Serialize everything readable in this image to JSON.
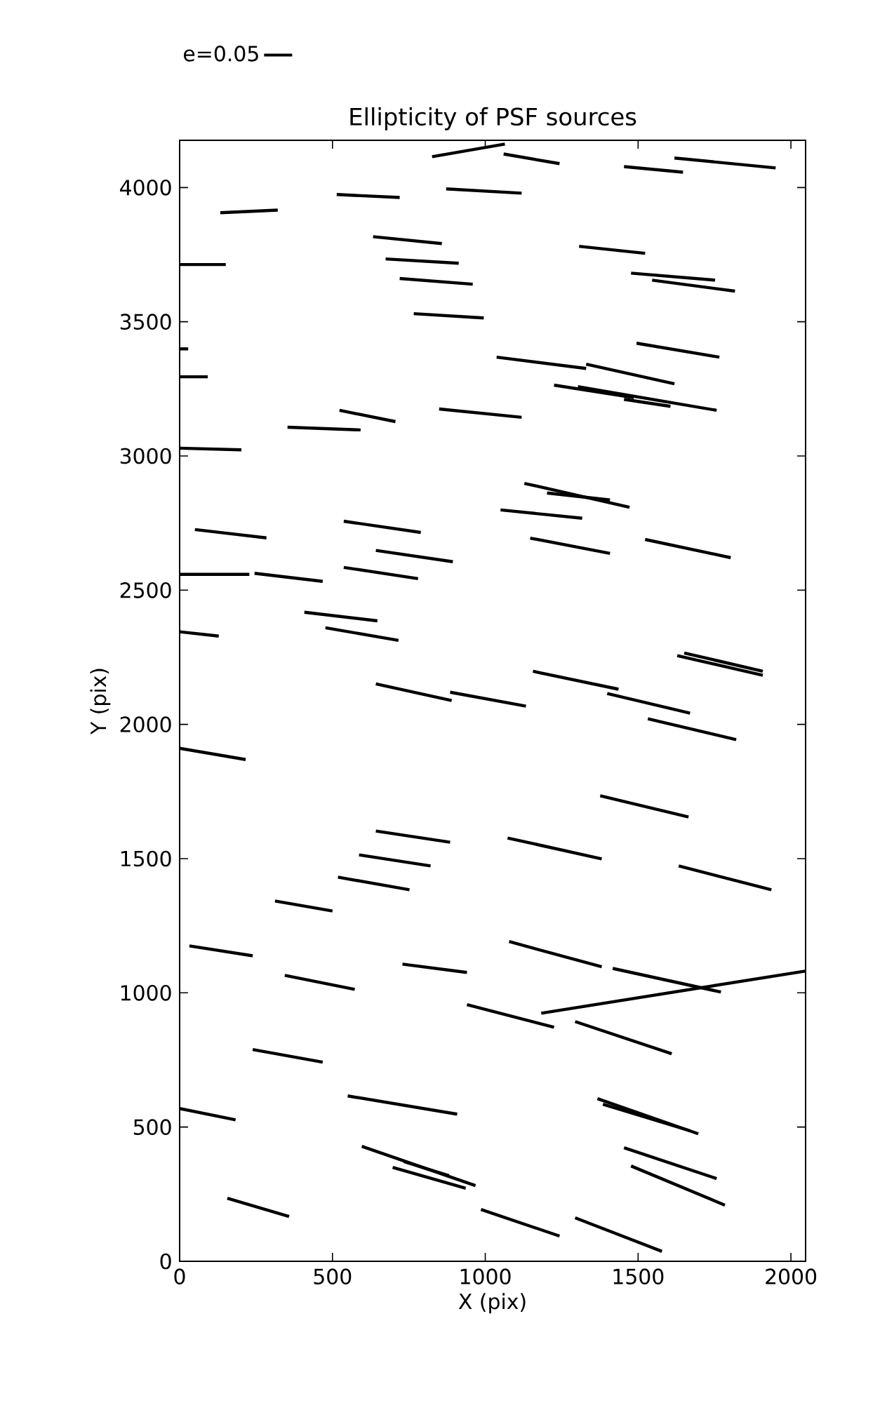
{
  "chart_data": {
    "type": "line",
    "title": "Ellipticity of PSF sources",
    "xlabel": "X (pix)",
    "ylabel": "Y (pix)",
    "xlim": [
      0,
      2048
    ],
    "ylim": [
      0,
      4176
    ],
    "xticks": [
      0,
      500,
      1000,
      1500,
      2000
    ],
    "yticks": [
      0,
      500,
      1000,
      1500,
      2000,
      2500,
      3000,
      3500,
      4000
    ],
    "grid": false,
    "legend": "top left",
    "marker": "none",
    "line_style": "solid",
    "series": [
      {
        "name": "e=0.05",
        "color": "#000000",
        "x": [
          826,
          1064
        ],
        "values": [
          4115,
          4162
        ]
      },
      {
        "color": "#000000",
        "x": [
          1060,
          1243
        ],
        "values": [
          4125,
          4089
        ]
      },
      {
        "color": "#000000",
        "x": [
          1454,
          1647
        ],
        "values": [
          4078,
          4057
        ]
      },
      {
        "color": "#000000",
        "x": [
          1619,
          1950
        ],
        "values": [
          4110,
          4073
        ]
      },
      {
        "color": "#000000",
        "x": [
          133,
          321
        ],
        "values": [
          3906,
          3916
        ]
      },
      {
        "color": "#000000",
        "x": [
          514,
          720
        ],
        "values": [
          3974,
          3963
        ]
      },
      {
        "color": "#000000",
        "x": [
          872,
          1119
        ],
        "values": [
          3995,
          3979
        ]
      },
      {
        "color": "#000000",
        "x": [
          0,
          151
        ],
        "values": [
          3713,
          3713
        ]
      },
      {
        "color": "#000000",
        "x": [
          633,
          858
        ],
        "values": [
          3817,
          3791
        ]
      },
      {
        "color": "#000000",
        "x": [
          674,
          913
        ],
        "values": [
          3734,
          3718
        ]
      },
      {
        "color": "#000000",
        "x": [
          720,
          959
        ],
        "values": [
          3661,
          3640
        ]
      },
      {
        "color": "#000000",
        "x": [
          766,
          995
        ],
        "values": [
          3530,
          3514
        ]
      },
      {
        "color": "#000000",
        "x": [
          1307,
          1523
        ],
        "values": [
          3781,
          3755
        ]
      },
      {
        "color": "#000000",
        "x": [
          1477,
          1752
        ],
        "values": [
          3681,
          3655
        ]
      },
      {
        "color": "#000000",
        "x": [
          1546,
          1817
        ],
        "values": [
          3655,
          3614
        ]
      },
      {
        "color": "#000000",
        "x": [
          0,
          28
        ],
        "values": [
          3399,
          3399
        ]
      },
      {
        "color": "#000000",
        "x": [
          0,
          92
        ],
        "values": [
          3295,
          3295
        ]
      },
      {
        "color": "#000000",
        "x": [
          0,
          202
        ],
        "values": [
          3029,
          3023
        ]
      },
      {
        "color": "#000000",
        "x": [
          353,
          592
        ],
        "values": [
          3107,
          3097
        ]
      },
      {
        "color": "#000000",
        "x": [
          523,
          706
        ],
        "values": [
          3170,
          3128
        ]
      },
      {
        "color": "#000000",
        "x": [
          849,
          1119
        ],
        "values": [
          3175,
          3144
        ]
      },
      {
        "color": "#000000",
        "x": [
          1037,
          1330
        ],
        "values": [
          3368,
          3326
        ]
      },
      {
        "color": "#000000",
        "x": [
          1330,
          1619
        ],
        "values": [
          3342,
          3269
        ]
      },
      {
        "color": "#000000",
        "x": [
          1225,
          1486
        ],
        "values": [
          3264,
          3217
        ]
      },
      {
        "color": "#000000",
        "x": [
          1303,
          1757
        ],
        "values": [
          3258,
          3170
        ]
      },
      {
        "color": "#000000",
        "x": [
          1454,
          1606
        ],
        "values": [
          3211,
          3185
        ]
      },
      {
        "color": "#000000",
        "x": [
          1495,
          1766
        ],
        "values": [
          3420,
          3368
        ]
      },
      {
        "color": "#000000",
        "x": [
          1128,
          1472
        ],
        "values": [
          2898,
          2809
        ]
      },
      {
        "color": "#000000",
        "x": [
          1202,
          1408
        ],
        "values": [
          2862,
          2836
        ]
      },
      {
        "color": "#000000",
        "x": [
          1050,
          1317
        ],
        "values": [
          2799,
          2768
        ]
      },
      {
        "color": "#000000",
        "x": [
          50,
          284
        ],
        "values": [
          2726,
          2695
        ]
      },
      {
        "color": "#000000",
        "x": [
          537,
          789
        ],
        "values": [
          2757,
          2715
        ]
      },
      {
        "color": "#000000",
        "x": [
          642,
          894
        ],
        "values": [
          2648,
          2606
        ]
      },
      {
        "color": "#000000",
        "x": [
          537,
          780
        ],
        "values": [
          2585,
          2543
        ]
      },
      {
        "color": "#000000",
        "x": [
          0,
          228
        ],
        "values": [
          2559,
          2559
        ]
      },
      {
        "color": "#000000",
        "x": [
          245,
          468
        ],
        "values": [
          2563,
          2533
        ]
      },
      {
        "color": "#000000",
        "x": [
          408,
          647
        ],
        "values": [
          2418,
          2386
        ]
      },
      {
        "color": "#000000",
        "x": [
          477,
          716
        ],
        "values": [
          2360,
          2313
        ]
      },
      {
        "color": "#000000",
        "x": [
          0,
          128
        ],
        "values": [
          2345,
          2329
        ]
      },
      {
        "color": "#000000",
        "x": [
          642,
          890
        ],
        "values": [
          2151,
          2089
        ]
      },
      {
        "color": "#000000",
        "x": [
          885,
          1133
        ],
        "values": [
          2120,
          2068
        ]
      },
      {
        "color": "#000000",
        "x": [
          0,
          216
        ],
        "values": [
          1911,
          1869
        ]
      },
      {
        "color": "#000000",
        "x": [
          642,
          885
        ],
        "values": [
          1603,
          1561
        ]
      },
      {
        "color": "#000000",
        "x": [
          587,
          821
        ],
        "values": [
          1514,
          1473
        ]
      },
      {
        "color": "#000000",
        "x": [
          518,
          752
        ],
        "values": [
          1431,
          1384
        ]
      },
      {
        "color": "#000000",
        "x": [
          1147,
          1408
        ],
        "values": [
          2694,
          2637
        ]
      },
      {
        "color": "#000000",
        "x": [
          1523,
          1803
        ],
        "values": [
          2689,
          2621
        ]
      },
      {
        "color": "#000000",
        "x": [
          1628,
          1908
        ],
        "values": [
          2256,
          2183
        ]
      },
      {
        "color": "#000000",
        "x": [
          1651,
          1908
        ],
        "values": [
          2266,
          2198
        ]
      },
      {
        "color": "#000000",
        "x": [
          1156,
          1436
        ],
        "values": [
          2198,
          2131
        ]
      },
      {
        "color": "#000000",
        "x": [
          1399,
          1670
        ],
        "values": [
          2115,
          2042
        ]
      },
      {
        "color": "#000000",
        "x": [
          1532,
          1821
        ],
        "values": [
          2021,
          1943
        ]
      },
      {
        "color": "#000000",
        "x": [
          1376,
          1665
        ],
        "values": [
          1734,
          1655
        ]
      },
      {
        "color": "#000000",
        "x": [
          1073,
          1381
        ],
        "values": [
          1577,
          1499
        ]
      },
      {
        "color": "#000000",
        "x": [
          1633,
          1936
        ],
        "values": [
          1473,
          1384
        ]
      },
      {
        "color": "#000000",
        "x": [
          312,
          500
        ],
        "values": [
          1342,
          1305
        ]
      },
      {
        "color": "#000000",
        "x": [
          32,
          239
        ],
        "values": [
          1175,
          1138
        ]
      },
      {
        "color": "#000000",
        "x": [
          729,
          940
        ],
        "values": [
          1107,
          1076
        ]
      },
      {
        "color": "#000000",
        "x": [
          344,
          573
        ],
        "values": [
          1065,
          1013
        ]
      },
      {
        "color": "#000000",
        "x": [
          940,
          1225
        ],
        "values": [
          956,
          872
        ]
      },
      {
        "color": "#000000",
        "x": [
          239,
          468
        ],
        "values": [
          789,
          742
        ]
      },
      {
        "color": "#000000",
        "x": [
          0,
          183
        ],
        "values": [
          569,
          527
        ]
      },
      {
        "color": "#000000",
        "x": [
          550,
          908
        ],
        "values": [
          616,
          548
        ]
      },
      {
        "color": "#000000",
        "x": [
          596,
          968
        ],
        "values": [
          428,
          282
        ]
      },
      {
        "color": "#000000",
        "x": [
          734,
          881
        ],
        "values": [
          371,
          319
        ]
      },
      {
        "color": "#000000",
        "x": [
          697,
          936
        ],
        "values": [
          350,
          272
        ]
      },
      {
        "color": "#000000",
        "x": [
          156,
          358
        ],
        "values": [
          235,
          167
        ]
      },
      {
        "color": "#000000",
        "x": [
          986,
          1243
        ],
        "values": [
          193,
          94
        ]
      },
      {
        "color": "#000000",
        "x": [
          1294,
          1578
        ],
        "values": [
          162,
          37
        ]
      },
      {
        "color": "#000000",
        "x": [
          1078,
          1381
        ],
        "values": [
          1191,
          1097
        ]
      },
      {
        "color": "#000000",
        "x": [
          1417,
          1771
        ],
        "values": [
          1091,
          1003
        ]
      },
      {
        "color": "#000000",
        "x": [
          1183,
          2046
        ],
        "values": [
          924,
          1081
        ]
      },
      {
        "color": "#000000",
        "x": [
          1294,
          1610
        ],
        "values": [
          893,
          773
        ]
      },
      {
        "color": "#000000",
        "x": [
          1367,
          1697
        ],
        "values": [
          606,
          475
        ]
      },
      {
        "color": "#000000",
        "x": [
          1385,
          1670
        ],
        "values": [
          585,
          486
        ]
      },
      {
        "color": "#000000",
        "x": [
          1454,
          1757
        ],
        "values": [
          423,
          308
        ]
      },
      {
        "color": "#000000",
        "x": [
          1477,
          1784
        ],
        "values": [
          355,
          209
        ]
      }
    ]
  }
}
